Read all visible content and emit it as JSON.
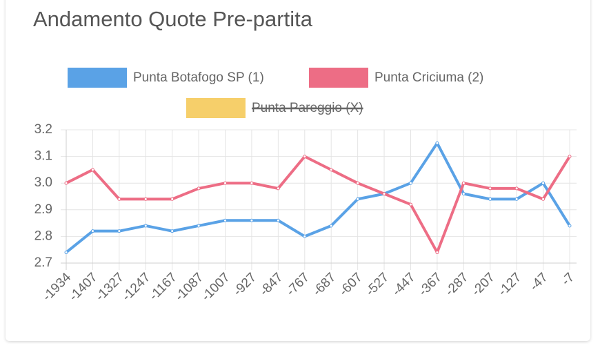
{
  "chart_data": {
    "type": "line",
    "title": "Andamento Quote Pre-partita",
    "categories": [
      "-1934",
      "-1407",
      "-1327",
      "-1247",
      "-1167",
      "-1087",
      "-1007",
      "-927",
      "-847",
      "-767",
      "-687",
      "-607",
      "-527",
      "-447",
      "-367",
      "-287",
      "-207",
      "-127",
      "-47",
      "-7"
    ],
    "series": [
      {
        "name": "Punta Botafogo SP (1)",
        "color": "#5aa2e6",
        "values": [
          2.74,
          2.82,
          2.82,
          2.84,
          2.82,
          2.84,
          2.86,
          2.86,
          2.86,
          2.8,
          2.84,
          2.94,
          2.96,
          3.0,
          3.15,
          2.96,
          2.94,
          2.94,
          3.0,
          2.84
        ]
      },
      {
        "name": "Punta Criciuma (2)",
        "color": "#ed6d85",
        "values": [
          3.0,
          3.05,
          2.94,
          2.94,
          2.94,
          2.98,
          3.0,
          3.0,
          2.98,
          3.1,
          3.05,
          3.0,
          2.96,
          2.92,
          2.74,
          3.0,
          2.98,
          2.98,
          2.94,
          3.1
        ]
      },
      {
        "name": "Punta Pareggio (X)",
        "color": "#f6cf6a",
        "hidden": true
      }
    ],
    "ylim": [
      2.7,
      3.2
    ],
    "yticks": [
      2.7,
      2.8,
      2.9,
      {
        "value": 3,
        "label": "3.0"
      },
      3.1,
      3.2
    ],
    "grid": true
  }
}
